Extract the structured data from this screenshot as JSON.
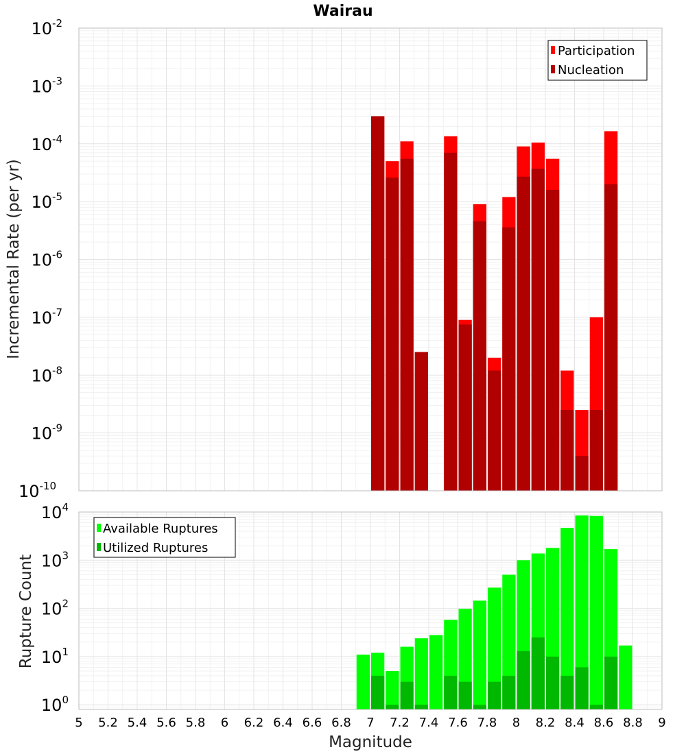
{
  "chart_data": [
    {
      "type": "bar",
      "panel": "top",
      "title": "Wairau",
      "ylabel": "Incremental Rate (per yr)",
      "yscale": "log",
      "ylim": [
        1e-10,
        0.01
      ],
      "yticks": [
        {
          "base": "10",
          "exp": "-10",
          "value": 1e-10
        },
        {
          "base": "10",
          "exp": "-9",
          "value": 1e-09
        },
        {
          "base": "10",
          "exp": "-8",
          "value": 1e-08
        },
        {
          "base": "10",
          "exp": "-7",
          "value": 1e-07
        },
        {
          "base": "10",
          "exp": "-6",
          "value": 1e-06
        },
        {
          "base": "10",
          "exp": "-5",
          "value": 1e-05
        },
        {
          "base": "10",
          "exp": "-4",
          "value": 0.0001
        },
        {
          "base": "10",
          "exp": "-3",
          "value": 0.001
        },
        {
          "base": "10",
          "exp": "-2",
          "value": 0.01
        }
      ],
      "legend": {
        "placement": "top-right",
        "entries": [
          "Participation",
          "Nucleation"
        ]
      },
      "series": [
        {
          "name": "Participation",
          "color": "#ff0000",
          "x": [
            7.05,
            7.15,
            7.25,
            7.35,
            7.55,
            7.65,
            7.75,
            7.85,
            7.95,
            8.05,
            8.15,
            8.25,
            8.35,
            8.45,
            8.55,
            8.65
          ],
          "values": [
            0.0003,
            5e-05,
            0.00011,
            2.5e-08,
            0.000135,
            9e-08,
            9e-06,
            2e-08,
            1.2e-05,
            9e-05,
            0.000105,
            5.5e-05,
            1.2e-08,
            2.5e-09,
            1e-07,
            0.000165
          ]
        },
        {
          "name": "Nucleation",
          "color": "#b00000",
          "x": [
            7.05,
            7.15,
            7.25,
            7.35,
            7.55,
            7.65,
            7.75,
            7.85,
            7.95,
            8.05,
            8.15,
            8.25,
            8.35,
            8.45,
            8.55,
            8.65
          ],
          "values": [
            0.0003,
            2.6e-05,
            5.5e-05,
            2.5e-08,
            7e-05,
            7.5e-08,
            4.6e-06,
            1.2e-08,
            3.6e-06,
            2.7e-05,
            3.7e-05,
            1.6e-05,
            2.5e-09,
            4e-10,
            2.5e-09,
            2e-05
          ]
        }
      ]
    },
    {
      "type": "bar",
      "panel": "bottom",
      "ylabel": "Rupture Count",
      "xlabel": "Magnitude",
      "yscale": "log",
      "ylim": [
        0.8,
        10000
      ],
      "yticks": [
        {
          "base": "10",
          "exp": "0",
          "value": 1
        },
        {
          "base": "10",
          "exp": "1",
          "value": 10
        },
        {
          "base": "10",
          "exp": "2",
          "value": 100
        },
        {
          "base": "10",
          "exp": "3",
          "value": 1000
        },
        {
          "base": "10",
          "exp": "4",
          "value": 10000
        }
      ],
      "xlim": [
        5,
        9
      ],
      "xticks": [
        "5",
        "5.2",
        "5.4",
        "5.6",
        "5.8",
        "6",
        "6.2",
        "6.4",
        "6.6",
        "6.8",
        "7",
        "7.2",
        "7.4",
        "7.6",
        "7.8",
        "8",
        "8.2",
        "8.4",
        "8.6",
        "8.8",
        "9"
      ],
      "legend": {
        "placement": "top-left",
        "entries": [
          "Available Ruptures",
          "Utilized Ruptures"
        ]
      },
      "series": [
        {
          "name": "Available Ruptures",
          "color": "#00ff00",
          "x": [
            6.95,
            7.05,
            7.15,
            7.25,
            7.35,
            7.45,
            7.55,
            7.65,
            7.75,
            7.85,
            7.95,
            8.05,
            8.15,
            8.25,
            8.35,
            8.45,
            8.55,
            8.65,
            8.75
          ],
          "values": [
            11,
            12,
            5,
            16,
            24,
            28,
            58,
            98,
            145,
            270,
            500,
            1000,
            1380,
            1800,
            4700,
            8500,
            8300,
            1700,
            17
          ]
        },
        {
          "name": "Utilized Ruptures",
          "color": "#00b800",
          "x": [
            7.05,
            7.15,
            7.25,
            7.35,
            7.55,
            7.65,
            7.75,
            7.85,
            7.95,
            8.05,
            8.15,
            8.25,
            8.35,
            8.45,
            8.55,
            8.65
          ],
          "values": [
            4,
            1,
            3,
            1,
            4,
            3,
            1,
            3,
            4,
            13,
            25,
            10,
            4,
            6,
            1,
            10
          ]
        }
      ]
    }
  ]
}
